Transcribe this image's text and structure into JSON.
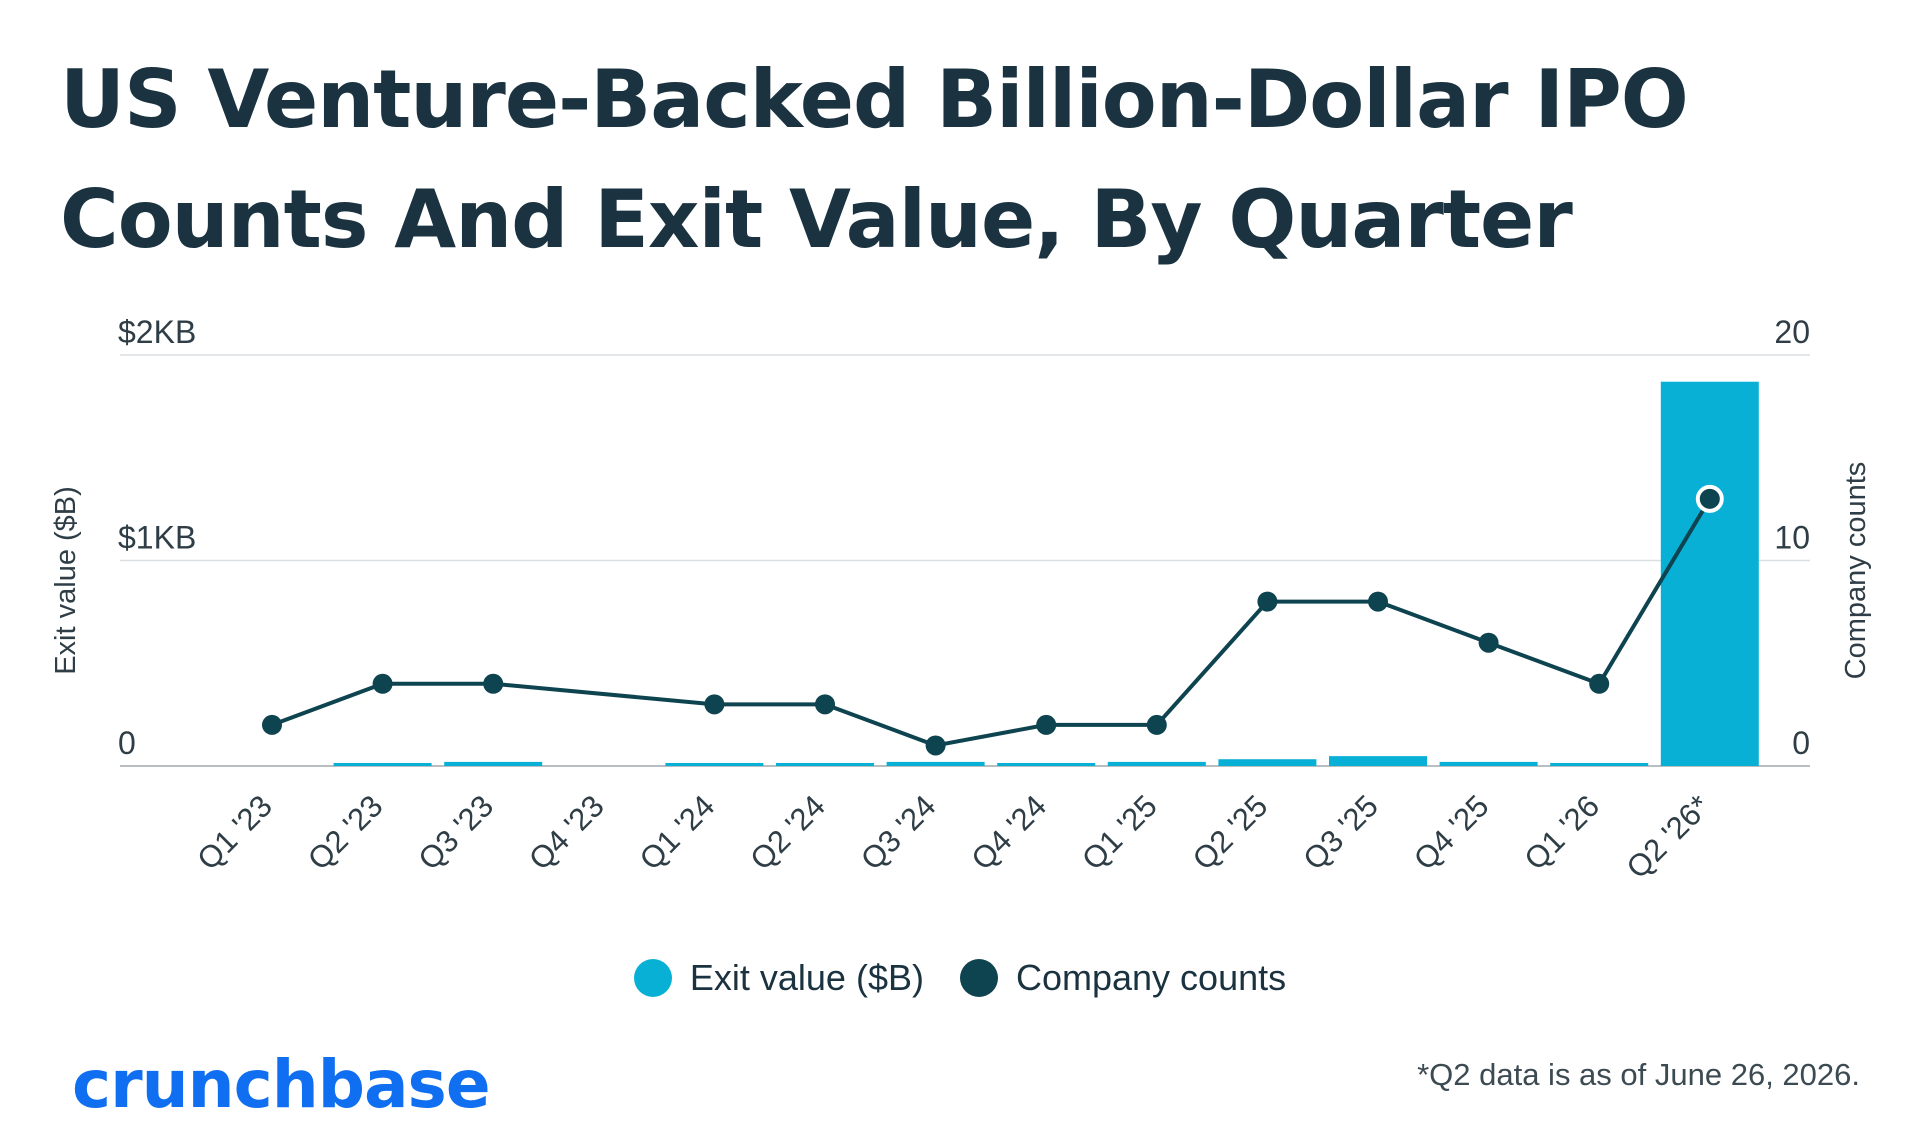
{
  "title_lines": [
    "US Venture-Backed Billion-Dollar IPO",
    "Counts And Exit Value, By Quarter"
  ],
  "colors": {
    "bar": "#08b0d6",
    "line": "#0e4350",
    "grid": "#dcdfe2",
    "axis_text": "#2f3e46",
    "title": "#1b3340",
    "logo": "#0f6ff0"
  },
  "legend": [
    {
      "label": "Exit value ($B)",
      "color": "#08b0d6"
    },
    {
      "label": "Company counts",
      "color": "#0e4350"
    }
  ],
  "logo_text": "crunchbase",
  "footnote": "*Q2 data is as of June 26, 2026.",
  "chart_data": {
    "type": "bar+line",
    "categories": [
      "Q1 '23",
      "Q2 '23",
      "Q3 '23",
      "Q4 '23",
      "Q1 '24",
      "Q2 '24",
      "Q3 '24",
      "Q4 '24",
      "Q1 '25",
      "Q2 '25",
      "Q3 '25",
      "Q4 '25",
      "Q1 '26",
      "Q2 '26*"
    ],
    "series": [
      {
        "name": "Exit value ($B)",
        "type": "bar",
        "axis": "left",
        "values": [
          0,
          9,
          20,
          0,
          9,
          9,
          20,
          9,
          20,
          33,
          48,
          20,
          9,
          1870
        ]
      },
      {
        "name": "Company counts",
        "type": "line",
        "axis": "right",
        "values": [
          2,
          4,
          4,
          null,
          3,
          3,
          1,
          2,
          2,
          8,
          8,
          6,
          4,
          13
        ]
      }
    ],
    "y_left": {
      "label": "Exit value ($B)",
      "range": [
        0,
        2000
      ],
      "ticks": [
        0,
        1000,
        2000
      ],
      "tick_labels": [
        "0",
        "$1KB",
        "$2KB"
      ]
    },
    "y_right": {
      "label": "Company counts",
      "range": [
        0,
        20
      ],
      "ticks": [
        0,
        10,
        20
      ],
      "tick_labels": [
        "0",
        "10",
        "20"
      ]
    },
    "grid": true,
    "legend_position": "bottom-center",
    "highlighted_point_index": 13
  }
}
